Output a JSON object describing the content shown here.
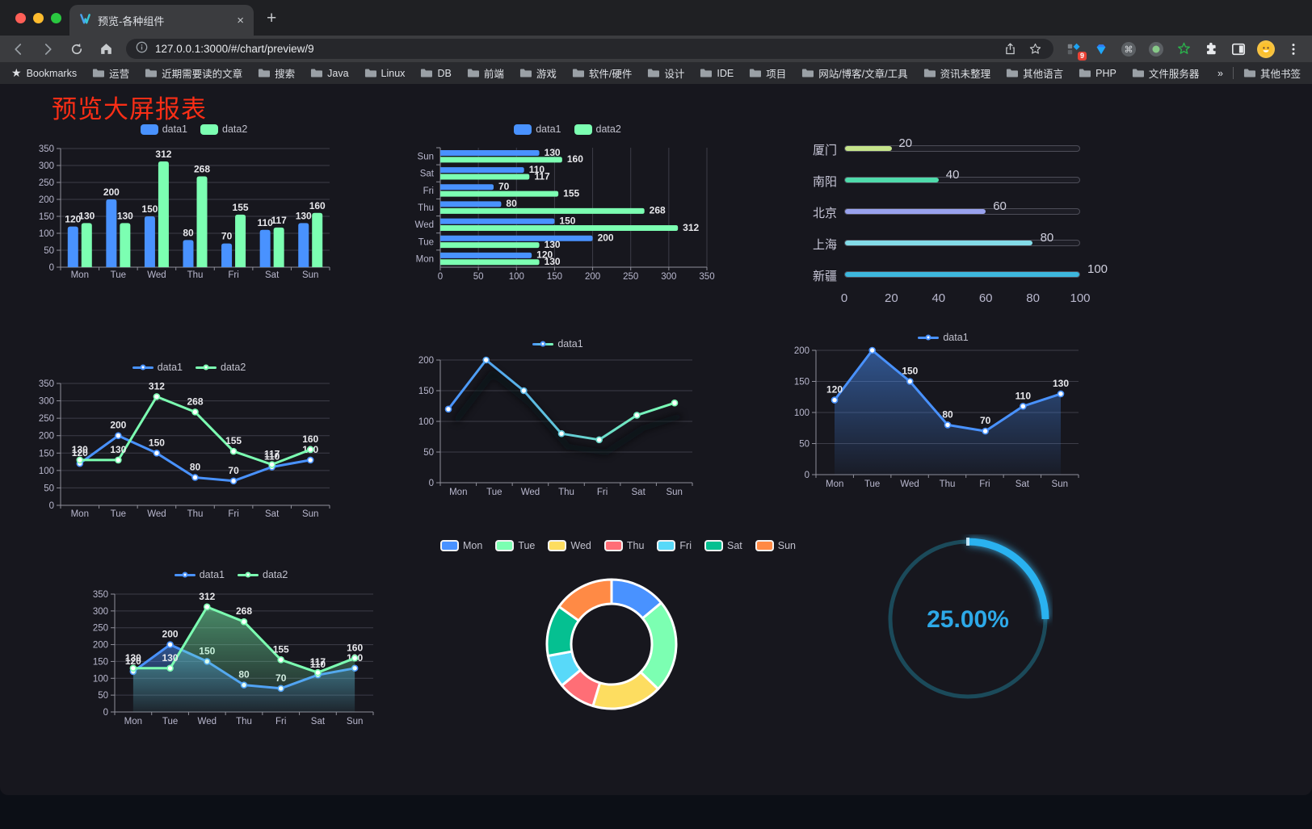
{
  "browser": {
    "tab_title": "预览-各种组件",
    "tab_close": "×",
    "new_tab": "+",
    "url": "127.0.0.1:3000/#/chart/preview/9",
    "extensions_badge": "9",
    "bookmarks_label": "Bookmarks",
    "bookmark_folders": [
      "运营",
      "近期需要读的文章",
      "搜索",
      "Java",
      "Linux",
      "DB",
      "前端",
      "游戏",
      "软件/硬件",
      "设计",
      "IDE",
      "项目",
      "网站/博客/文章/工具",
      "资讯未整理",
      "其他语言",
      "PHP",
      "文件服务器"
    ],
    "bookmarks_overflow": "»",
    "other_bookmarks": "其他书签"
  },
  "page": {
    "title": "预览大屏报表",
    "title_color": "#f92e16",
    "background": "#17171e",
    "accent_blue": "#4992ff",
    "accent_green": "#7cffb2"
  },
  "chart_data": [
    {
      "id": "bar-grouped",
      "type": "bar",
      "categories": [
        "Mon",
        "Tue",
        "Wed",
        "Thu",
        "Fri",
        "Sat",
        "Sun"
      ],
      "series": [
        {
          "name": "data1",
          "color": "#4992ff",
          "values": [
            120,
            200,
            150,
            80,
            70,
            110,
            130
          ]
        },
        {
          "name": "data2",
          "color": "#7cffb2",
          "values": [
            130,
            130,
            312,
            268,
            155,
            117,
            160
          ]
        }
      ],
      "ylim": [
        0,
        350
      ],
      "ytick_step": 50,
      "grid": true,
      "labels": true,
      "legend": {
        "shape": "roundRect",
        "position": "top",
        "items": [
          {
            "label": "data1",
            "color": "#4992ff"
          },
          {
            "label": "data2",
            "color": "#7cffb2"
          }
        ]
      }
    },
    {
      "id": "bar-horizontal",
      "type": "bar-horizontal",
      "categories": [
        "Mon",
        "Tue",
        "Wed",
        "Thu",
        "Fri",
        "Sat",
        "Sun"
      ],
      "category_axis_order": "Mon at bottom, Sun at top",
      "series": [
        {
          "name": "data1",
          "color": "#4992ff",
          "values": [
            120,
            200,
            150,
            80,
            70,
            110,
            130
          ]
        },
        {
          "name": "data2",
          "color": "#7cffb2",
          "values": [
            130,
            130,
            312,
            268,
            155,
            117,
            160
          ]
        }
      ],
      "xlim": [
        0,
        350
      ],
      "xtick_step": 50,
      "grid": true,
      "labels": true,
      "legend": {
        "shape": "roundRect",
        "position": "top",
        "items": [
          {
            "label": "data1",
            "color": "#4992ff"
          },
          {
            "label": "data2",
            "color": "#7cffb2"
          }
        ]
      }
    },
    {
      "id": "progress-list",
      "type": "bar",
      "subtype": "progress-bars",
      "items": [
        {
          "label": "厦门",
          "value": 20,
          "color": "#c5e48b"
        },
        {
          "label": "南阳",
          "value": 40,
          "color": "#4fdbab"
        },
        {
          "label": "北京",
          "value": 60,
          "color": "#99a2ee"
        },
        {
          "label": "上海",
          "value": 80,
          "color": "#83dce8"
        },
        {
          "label": "新疆",
          "value": 100,
          "color": "#3db7dd"
        }
      ],
      "axis_ticks": [
        0,
        20,
        40,
        60,
        80,
        100
      ],
      "max": 100
    },
    {
      "id": "line-two-series",
      "type": "line",
      "categories": [
        "Mon",
        "Tue",
        "Wed",
        "Thu",
        "Fri",
        "Sat",
        "Sun"
      ],
      "series": [
        {
          "name": "data1",
          "color": "#4992ff",
          "values": [
            120,
            200,
            150,
            80,
            70,
            110,
            130
          ]
        },
        {
          "name": "data2",
          "color": "#7cffb2",
          "values": [
            130,
            130,
            312,
            268,
            155,
            117,
            160
          ]
        }
      ],
      "ylim": [
        0,
        350
      ],
      "ytick_step": 50,
      "labels": true,
      "legend": {
        "shape": "line",
        "position": "top",
        "items": [
          {
            "label": "data1",
            "color": "#4992ff"
          },
          {
            "label": "data2",
            "color": "#7cffb2"
          }
        ]
      }
    },
    {
      "id": "line-gradient",
      "type": "line",
      "categories": [
        "Mon",
        "Tue",
        "Wed",
        "Thu",
        "Fri",
        "Sat",
        "Sun"
      ],
      "series": [
        {
          "name": "data1",
          "color_start": "#4992ff",
          "color_end": "#7cffb2",
          "values": [
            120,
            200,
            150,
            80,
            70,
            110,
            130
          ]
        }
      ],
      "ylim": [
        0,
        200
      ],
      "ytick_step": 50,
      "labels": false,
      "gradient": true,
      "shadow": true,
      "legend": {
        "shape": "line",
        "position": "top",
        "items": [
          {
            "label": "data1",
            "gradient": [
              "#4992ff",
              "#7cffb2"
            ]
          }
        ]
      }
    },
    {
      "id": "line-area",
      "type": "area",
      "categories": [
        "Mon",
        "Tue",
        "Wed",
        "Thu",
        "Fri",
        "Sat",
        "Sun"
      ],
      "series": [
        {
          "name": "data1",
          "color": "#4992ff",
          "values": [
            120,
            200,
            150,
            80,
            70,
            110,
            130
          ]
        }
      ],
      "ylim": [
        0,
        200
      ],
      "ytick_step": 50,
      "labels": true,
      "area": true,
      "legend": {
        "shape": "line",
        "position": "top",
        "items": [
          {
            "label": "data1",
            "color": "#4992ff"
          }
        ]
      }
    },
    {
      "id": "line-two-area",
      "type": "area",
      "categories": [
        "Mon",
        "Tue",
        "Wed",
        "Thu",
        "Fri",
        "Sat",
        "Sun"
      ],
      "series": [
        {
          "name": "data1",
          "color": "#4992ff",
          "values": [
            120,
            200,
            150,
            80,
            70,
            110,
            130
          ]
        },
        {
          "name": "data2",
          "color": "#7cffb2",
          "values": [
            130,
            130,
            312,
            268,
            155,
            117,
            160
          ]
        }
      ],
      "ylim": [
        0,
        350
      ],
      "ytick_step": 50,
      "labels": true,
      "area": true,
      "legend": {
        "shape": "line",
        "position": "top",
        "items": [
          {
            "label": "data1",
            "color": "#4992ff"
          },
          {
            "label": "data2",
            "color": "#7cffb2"
          }
        ]
      }
    },
    {
      "id": "donut",
      "type": "pie",
      "inner_radius_ratio": 0.63,
      "items": [
        {
          "name": "Mon",
          "value": 120,
          "color": "#4992ff"
        },
        {
          "name": "Tue",
          "value": 200,
          "color": "#7cffb2"
        },
        {
          "name": "Wed",
          "value": 150,
          "color": "#fddd60"
        },
        {
          "name": "Thu",
          "value": 80,
          "color": "#ff6e76"
        },
        {
          "name": "Fri",
          "value": 70,
          "color": "#58d9f9"
        },
        {
          "name": "Sat",
          "value": 110,
          "color": "#05c091"
        },
        {
          "name": "Sun",
          "value": 130,
          "color": "#ff8a45"
        }
      ],
      "legend": {
        "shape": "roundRect-bordered",
        "position": "top"
      }
    },
    {
      "id": "gauge",
      "type": "gauge",
      "value": 25,
      "display": "25.00%",
      "color": "#29b2f0",
      "track_color": "#1b4a5a",
      "text_color": "#2da9e8"
    }
  ]
}
